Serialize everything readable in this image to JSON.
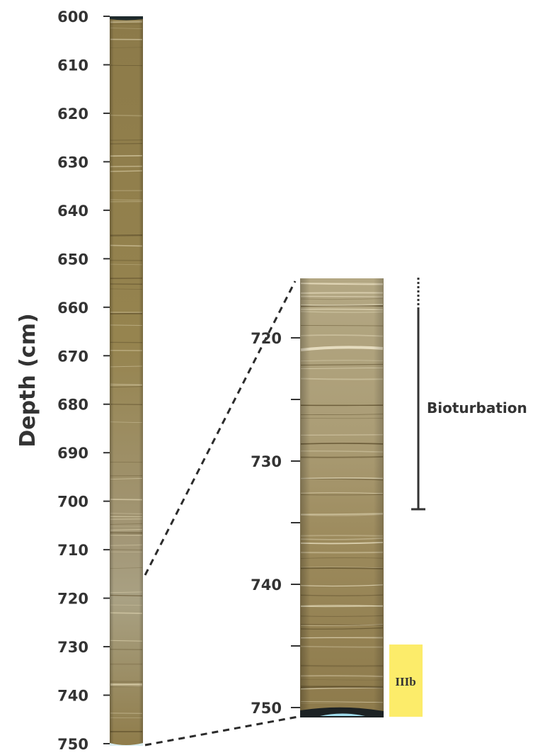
{
  "figure": {
    "axis_label": "Depth (cm)",
    "colors": {
      "sediment_dark": "#8a7746",
      "sediment_mid": "#a08c5a",
      "sediment_light": "#b4a682",
      "sediment_grey": "#a9a183",
      "text": "#333333",
      "unit_box": "#fcec6a"
    }
  },
  "full_core": {
    "depth_range_cm": [
      600,
      750
    ],
    "ticks": [
      "600",
      "610",
      "620",
      "630",
      "640",
      "650",
      "660",
      "670",
      "680",
      "690",
      "700",
      "710",
      "720",
      "730",
      "740",
      "750"
    ]
  },
  "zoom_core": {
    "depth_range_cm": [
      715,
      750
    ],
    "tick_depths_cm": [
      720,
      725,
      730,
      735,
      740,
      745,
      750
    ],
    "labeled_ticks": [
      "720",
      "730",
      "740",
      "750"
    ]
  },
  "annotations": {
    "bioturbation": {
      "label": "Bioturbation",
      "top_cm": 715,
      "bottom_cm": 733.8
    },
    "unit": {
      "label": "IIIb",
      "top_cm": 744.8,
      "bottom_cm": 750.5
    }
  }
}
